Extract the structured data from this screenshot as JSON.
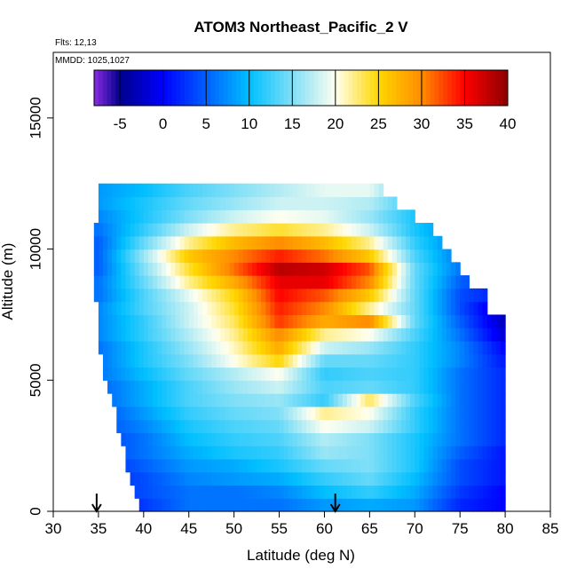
{
  "chart_data": {
    "type": "heatmap",
    "title": "ATOM3 Northeast_Pacific_2 V",
    "flights_label": "Flts: 12,13",
    "mmdd_label": "MMDD: 1025,1027",
    "xlabel": "Latitude (deg N)",
    "ylabel": "Altitude (m)",
    "xlim": [
      30,
      85
    ],
    "ylim": [
      0,
      17500
    ],
    "xticks": [
      30,
      35,
      40,
      45,
      50,
      55,
      60,
      65,
      70,
      75,
      80,
      85
    ],
    "yticks": [
      0,
      5000,
      10000,
      15000
    ],
    "colorbar": {
      "range": [
        -8,
        40
      ],
      "ticks": [
        -5,
        0,
        5,
        10,
        15,
        20,
        25,
        30,
        35,
        40
      ],
      "stops": [
        {
          "v": -8,
          "c": "#8a2be2"
        },
        {
          "v": -5,
          "c": "#00008b"
        },
        {
          "v": 0,
          "c": "#0000ff"
        },
        {
          "v": 10,
          "c": "#00bfff"
        },
        {
          "v": 20,
          "c": "#fffff0"
        },
        {
          "v": 25,
          "c": "#ffd700"
        },
        {
          "v": 30,
          "c": "#ff8c00"
        },
        {
          "v": 35,
          "c": "#ff0000"
        },
        {
          "v": 40,
          "c": "#8b0000"
        }
      ]
    },
    "flight_markers_lat": [
      34.8,
      61.2
    ],
    "altitude_bands": [
      {
        "alt": 250,
        "lat": [
          35,
          40,
          45,
          50,
          55,
          60,
          65,
          70,
          75,
          80
        ],
        "v": [
          0,
          3,
          6,
          6,
          6,
          8,
          9,
          8,
          2,
          0
        ],
        "extent": [
          39.5,
          80
        ]
      },
      {
        "alt": 750,
        "lat": [
          35,
          40,
          45,
          50,
          55,
          60,
          65,
          70,
          75,
          80
        ],
        "v": [
          2,
          4,
          6,
          6,
          7,
          10,
          12,
          9,
          3,
          0
        ],
        "extent": [
          39,
          80
        ]
      },
      {
        "alt": 1250,
        "lat": [
          35,
          40,
          45,
          50,
          55,
          60,
          65,
          70,
          75,
          80
        ],
        "v": [
          2,
          4,
          7,
          8,
          9,
          12,
          14,
          10,
          4,
          1
        ],
        "extent": [
          38.5,
          80
        ]
      },
      {
        "alt": 1750,
        "lat": [
          35,
          40,
          45,
          50,
          55,
          60,
          65,
          70,
          75,
          80
        ],
        "v": [
          2,
          5,
          8,
          9,
          11,
          14,
          15,
          11,
          4,
          1
        ],
        "extent": [
          38,
          80
        ]
      },
      {
        "alt": 2250,
        "lat": [
          35,
          40,
          45,
          50,
          55,
          60,
          65,
          70,
          75,
          80
        ],
        "v": [
          3,
          6,
          9,
          11,
          12,
          16,
          15,
          11,
          5,
          1
        ],
        "extent": [
          38,
          80
        ]
      },
      {
        "alt": 2750,
        "lat": [
          35,
          40,
          45,
          50,
          55,
          60,
          65,
          70,
          75,
          80
        ],
        "v": [
          3,
          6,
          10,
          12,
          13,
          17,
          15,
          11,
          6,
          2
        ],
        "extent": [
          37.5,
          80
        ]
      },
      {
        "alt": 3250,
        "lat": [
          35,
          40,
          45,
          50,
          55,
          60,
          65,
          70,
          75,
          80
        ],
        "v": [
          4,
          7,
          11,
          13,
          14,
          20,
          18,
          12,
          6,
          2
        ],
        "extent": [
          37,
          80
        ]
      },
      {
        "alt": 3750,
        "lat": [
          35,
          40,
          45,
          50,
          55,
          60,
          65,
          70,
          75,
          80
        ],
        "v": [
          4,
          8,
          12,
          14,
          15,
          22,
          20,
          12,
          6,
          2
        ],
        "extent": [
          37,
          80
        ]
      },
      {
        "alt": 4250,
        "lat": [
          35,
          40,
          45,
          50,
          55,
          60,
          65,
          70,
          75,
          80
        ],
        "v": [
          5,
          9,
          13,
          15,
          16,
          12,
          23,
          13,
          6,
          2
        ],
        "extent": [
          36.5,
          80
        ]
      },
      {
        "alt": 4750,
        "lat": [
          35,
          40,
          45,
          50,
          55,
          60,
          65,
          70,
          75,
          80
        ],
        "v": [
          5,
          9,
          13,
          16,
          18,
          13,
          14,
          12,
          6,
          2
        ],
        "extent": [
          36,
          80
        ]
      },
      {
        "alt": 5250,
        "lat": [
          35,
          40,
          45,
          50,
          55,
          60,
          65,
          70,
          75,
          80
        ],
        "v": [
          6,
          10,
          14,
          17,
          20,
          12,
          13,
          12,
          6,
          2
        ],
        "extent": [
          35.5,
          80
        ]
      },
      {
        "alt": 5750,
        "lat": [
          35,
          40,
          45,
          50,
          55,
          60,
          65,
          70,
          75,
          80
        ],
        "v": [
          6,
          11,
          15,
          20,
          25,
          14,
          14,
          12,
          7,
          1
        ],
        "extent": [
          35.5,
          80
        ]
      },
      {
        "alt": 6250,
        "lat": [
          35,
          40,
          45,
          50,
          55,
          60,
          65,
          70,
          75,
          80
        ],
        "v": [
          6,
          11,
          16,
          21,
          28,
          18,
          16,
          12,
          7,
          0
        ],
        "extent": [
          35,
          80
        ]
      },
      {
        "alt": 6750,
        "lat": [
          35,
          40,
          45,
          50,
          55,
          60,
          65,
          70,
          75,
          80
        ],
        "v": [
          7,
          12,
          17,
          22,
          30,
          22,
          20,
          13,
          6,
          -2
        ],
        "extent": [
          35,
          80
        ]
      },
      {
        "alt": 7250,
        "lat": [
          35,
          40,
          45,
          50,
          55,
          60,
          65,
          70,
          75,
          80
        ],
        "v": [
          7,
          12,
          18,
          23,
          33,
          28,
          30,
          14,
          5,
          -3
        ],
        "extent": [
          35,
          80
        ]
      },
      {
        "alt": 7750,
        "lat": [
          35,
          40,
          45,
          50,
          55,
          60,
          65,
          70,
          75,
          80
        ],
        "v": [
          7,
          13,
          18,
          24,
          34,
          30,
          22,
          14,
          4,
          -3
        ],
        "extent": [
          35,
          78
        ]
      },
      {
        "alt": 8250,
        "lat": [
          35,
          40,
          45,
          50,
          55,
          60,
          65,
          70,
          75,
          80
        ],
        "v": [
          6,
          13,
          19,
          25,
          35,
          32,
          26,
          14,
          4,
          1
        ],
        "extent": [
          34.5,
          78
        ]
      },
      {
        "alt": 8750,
        "lat": [
          35,
          40,
          45,
          50,
          55,
          60,
          65,
          70,
          75,
          80
        ],
        "v": [
          6,
          14,
          22,
          28,
          36,
          36,
          30,
          14,
          5,
          2
        ],
        "extent": [
          34.5,
          76
        ]
      },
      {
        "alt": 9250,
        "lat": [
          35,
          40,
          45,
          50,
          55,
          60,
          65,
          70,
          75,
          80
        ],
        "v": [
          5,
          15,
          24,
          31,
          38,
          37,
          32,
          14,
          6,
          2
        ],
        "extent": [
          34.5,
          75
        ]
      },
      {
        "alt": 9750,
        "lat": [
          35,
          40,
          45,
          50,
          55,
          60,
          65,
          70,
          75,
          80
        ],
        "v": [
          5,
          16,
          26,
          30,
          34,
          31,
          26,
          13,
          6,
          2
        ],
        "extent": [
          34.5,
          74
        ]
      },
      {
        "alt": 10250,
        "lat": [
          35,
          40,
          45,
          50,
          55,
          60,
          65,
          70,
          75,
          80
        ],
        "v": [
          5,
          14,
          22,
          27,
          30,
          27,
          22,
          12,
          6,
          2
        ],
        "extent": [
          34.5,
          73
        ]
      },
      {
        "alt": 10750,
        "lat": [
          35,
          40,
          45,
          50,
          55,
          60,
          65,
          70,
          75,
          80
        ],
        "v": [
          6,
          12,
          18,
          22,
          24,
          22,
          18,
          11,
          6,
          2
        ],
        "extent": [
          34.5,
          72
        ]
      },
      {
        "alt": 11250,
        "lat": [
          35,
          40,
          45,
          50,
          55,
          60,
          65,
          70,
          75,
          80
        ],
        "v": [
          7,
          11,
          15,
          18,
          20,
          19,
          16,
          11,
          6,
          2
        ],
        "extent": [
          35,
          70
        ]
      },
      {
        "alt": 11750,
        "lat": [
          35,
          40,
          45,
          50,
          55,
          60,
          65,
          70,
          75,
          80
        ],
        "v": [
          8,
          11,
          14,
          16,
          18,
          18,
          17,
          12,
          6,
          2
        ],
        "extent": [
          35,
          68
        ]
      },
      {
        "alt": 12250,
        "lat": [
          35,
          40,
          45,
          50,
          55,
          60,
          65,
          70,
          75,
          80
        ],
        "v": [
          8,
          10,
          13,
          15,
          17,
          19,
          19,
          12,
          6,
          2
        ],
        "extent": [
          35,
          66.5
        ]
      }
    ]
  }
}
